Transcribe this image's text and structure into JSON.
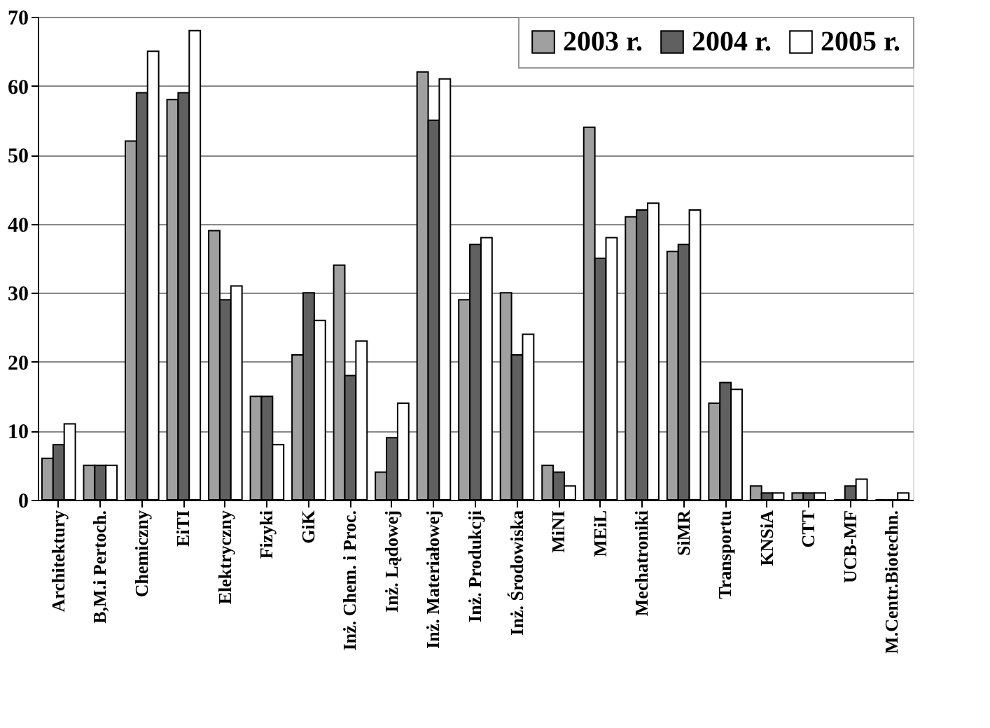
{
  "chart_data": {
    "type": "bar",
    "categories": [
      "Architektury",
      "B,M.i Pertoch.",
      "Chemiczny",
      "EiTI",
      "Elektryczny",
      "Fizyki",
      "GiK",
      "Inż. Chem. i Proc.",
      "Inż. Lądowej",
      "Inż. Materiałowej",
      "Inż. Produkcji",
      "Inż. Środowiska",
      "MiNI",
      "MEiL",
      "Mechatroniki",
      "SiMR",
      "Transportu",
      "KNSiA",
      "CTT",
      "UCB-MF",
      "M.Centr.Biotechn."
    ],
    "series": [
      {
        "name": "2003 r.",
        "color": "#a0a0a0",
        "values": [
          6,
          5,
          52,
          58,
          39,
          15,
          21,
          34,
          4,
          62,
          29,
          30,
          5,
          54,
          41,
          36,
          14,
          2,
          1,
          0,
          0
        ]
      },
      {
        "name": "2004 r.",
        "color": "#606060",
        "values": [
          8,
          5,
          59,
          59,
          29,
          15,
          30,
          18,
          9,
          55,
          37,
          21,
          4,
          35,
          42,
          37,
          17,
          1,
          1,
          2,
          0
        ]
      },
      {
        "name": "2005 r.",
        "color": "#ffffff",
        "values": [
          11,
          5,
          65,
          68,
          31,
          8,
          26,
          23,
          14,
          61,
          38,
          24,
          2,
          38,
          43,
          42,
          16,
          1,
          1,
          3,
          1
        ]
      }
    ],
    "ylim": [
      0,
      70
    ],
    "yticks": [
      0,
      10,
      20,
      30,
      40,
      50,
      60,
      70
    ],
    "grid": "y",
    "legend": "top right"
  }
}
